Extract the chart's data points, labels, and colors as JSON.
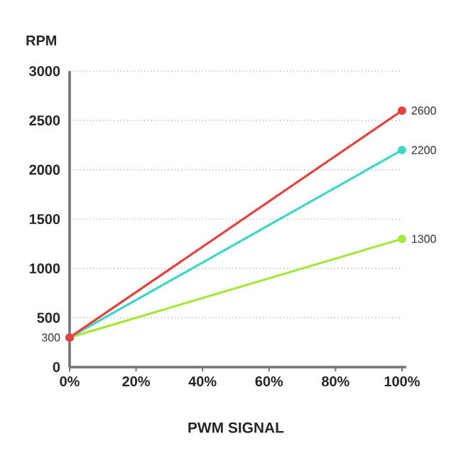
{
  "chart_data": {
    "type": "line",
    "xlabel": "PWM SIGNAL",
    "ylabel": "RPM",
    "x": [
      0,
      100
    ],
    "xlim": [
      0,
      100
    ],
    "ylim": [
      0,
      3000
    ],
    "xticks": [
      {
        "value": 0,
        "label": "0%"
      },
      {
        "value": 20,
        "label": "20%"
      },
      {
        "value": 40,
        "label": "40%"
      },
      {
        "value": 60,
        "label": "60%"
      },
      {
        "value": 80,
        "label": "80%"
      },
      {
        "value": 100,
        "label": "100%"
      }
    ],
    "yticks": [
      0,
      500,
      1000,
      1500,
      2000,
      2500,
      3000
    ],
    "series": [
      {
        "color": "#e8413f",
        "values": [
          300,
          2600
        ],
        "value_labels": [
          "300",
          "2600"
        ]
      },
      {
        "color": "#3ed8c8",
        "values": [
          300,
          2200
        ],
        "value_labels": [
          null,
          "2200"
        ]
      },
      {
        "color": "#a5e83a",
        "values": [
          300,
          1300
        ],
        "value_labels": [
          null,
          "1300"
        ]
      }
    ],
    "grid": "y",
    "marker": "circle",
    "line_style": "solid"
  }
}
